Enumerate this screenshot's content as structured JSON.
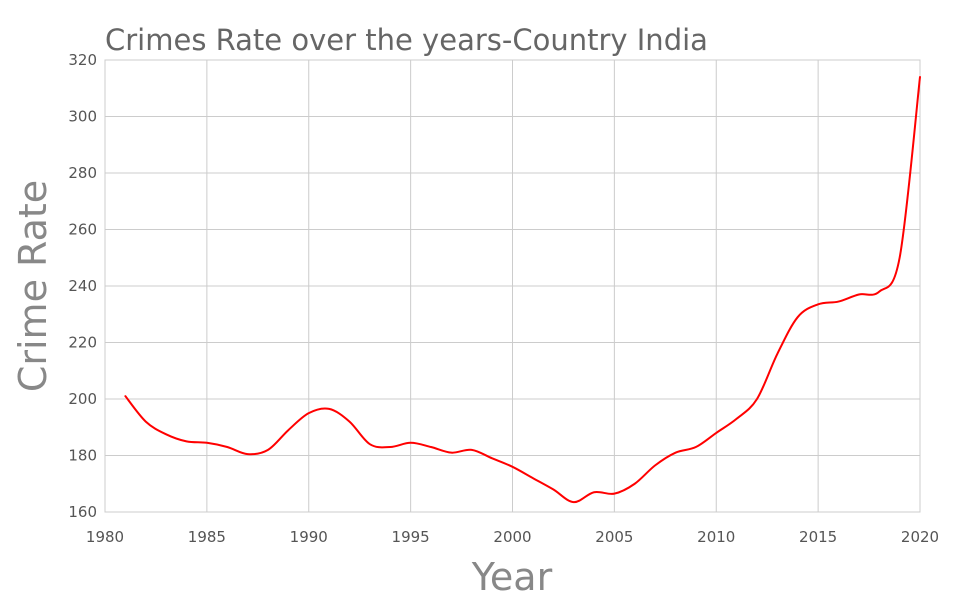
{
  "chart_data": {
    "type": "line",
    "title": "Crimes Rate over the years-Country India",
    "xlabel": "Year",
    "ylabel": "Crime Rate",
    "xlim": [
      1980,
      2020
    ],
    "ylim": [
      160,
      320
    ],
    "xticks": [
      1980,
      1985,
      1990,
      1995,
      2000,
      2005,
      2010,
      2015,
      2020
    ],
    "yticks": [
      160,
      180,
      200,
      220,
      240,
      260,
      280,
      300,
      320
    ],
    "grid": true,
    "series": [
      {
        "name": "Crime Rate",
        "color": "#ff0000",
        "x": [
          1981,
          1982,
          1983,
          1984,
          1985,
          1986,
          1987,
          1988,
          1989,
          1990,
          1991,
          1992,
          1993,
          1994,
          1995,
          1996,
          1997,
          1998,
          1999,
          2000,
          2001,
          2002,
          2003,
          2004,
          2005,
          2006,
          2007,
          2008,
          2009,
          2010,
          2011,
          2012,
          2013,
          2014,
          2015,
          2016,
          2017,
          2018,
          2019,
          2020
        ],
        "values": [
          201,
          192,
          187.5,
          185,
          184.5,
          183,
          180.5,
          182,
          189,
          195,
          196.5,
          192,
          184,
          183,
          184.5,
          183,
          181,
          182,
          179,
          176,
          172,
          168,
          163.5,
          167,
          166.5,
          170,
          176.5,
          181,
          183,
          188,
          193,
          200,
          216,
          229,
          233.5,
          234.5,
          237,
          238,
          250,
          314
        ]
      }
    ]
  }
}
